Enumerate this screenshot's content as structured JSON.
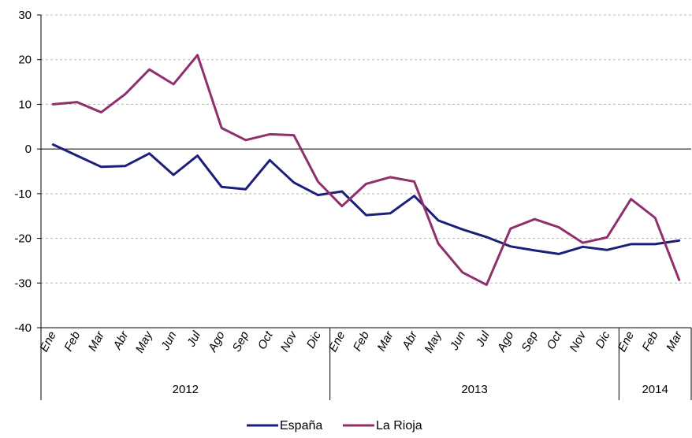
{
  "chart_data": {
    "type": "line",
    "title": "",
    "xlabel": "",
    "ylabel": "",
    "ylim": [
      -40,
      30
    ],
    "yticks": [
      -40,
      -30,
      -20,
      -10,
      0,
      10,
      20,
      30
    ],
    "grid": true,
    "legend_position": "bottom",
    "categories": [
      "Ene",
      "Feb",
      "Mar",
      "Abr",
      "May",
      "Jun",
      "Jul",
      "Ago",
      "Sep",
      "Oct",
      "Nov",
      "Dic",
      "Ene",
      "Feb",
      "Mar",
      "Abr",
      "May",
      "Jun",
      "Jul",
      "Ago",
      "Sep",
      "Oct",
      "Nov",
      "Dic",
      "Ene",
      "Feb",
      "Mar"
    ],
    "years": [
      {
        "label": "2012",
        "start": 0,
        "end": 11
      },
      {
        "label": "2013",
        "start": 12,
        "end": 23
      },
      {
        "label": "2014",
        "start": 24,
        "end": 26
      }
    ],
    "series": [
      {
        "name": "España",
        "color": "#1c1f7a",
        "values": [
          1.0,
          -1.5,
          -4.0,
          -3.8,
          -1.0,
          -5.8,
          -1.5,
          -8.5,
          -9.0,
          -2.5,
          -7.5,
          -10.3,
          -9.5,
          -14.8,
          -14.4,
          -10.5,
          -16.0,
          -18.0,
          -19.7,
          -21.8,
          -22.7,
          -23.5,
          -21.9,
          -22.6,
          -21.3,
          -21.3,
          -20.5
        ]
      },
      {
        "name": "La Rioja",
        "color": "#8f2f6b",
        "values": [
          10.0,
          10.5,
          8.2,
          12.3,
          17.8,
          14.5,
          21.0,
          4.7,
          2.0,
          3.3,
          3.1,
          -7.3,
          -12.8,
          -7.8,
          -6.3,
          -7.3,
          -21.2,
          -27.6,
          -30.4,
          -17.8,
          -15.7,
          -17.5,
          -21.0,
          -19.8,
          -11.2,
          -15.4,
          -29.3
        ]
      }
    ]
  }
}
